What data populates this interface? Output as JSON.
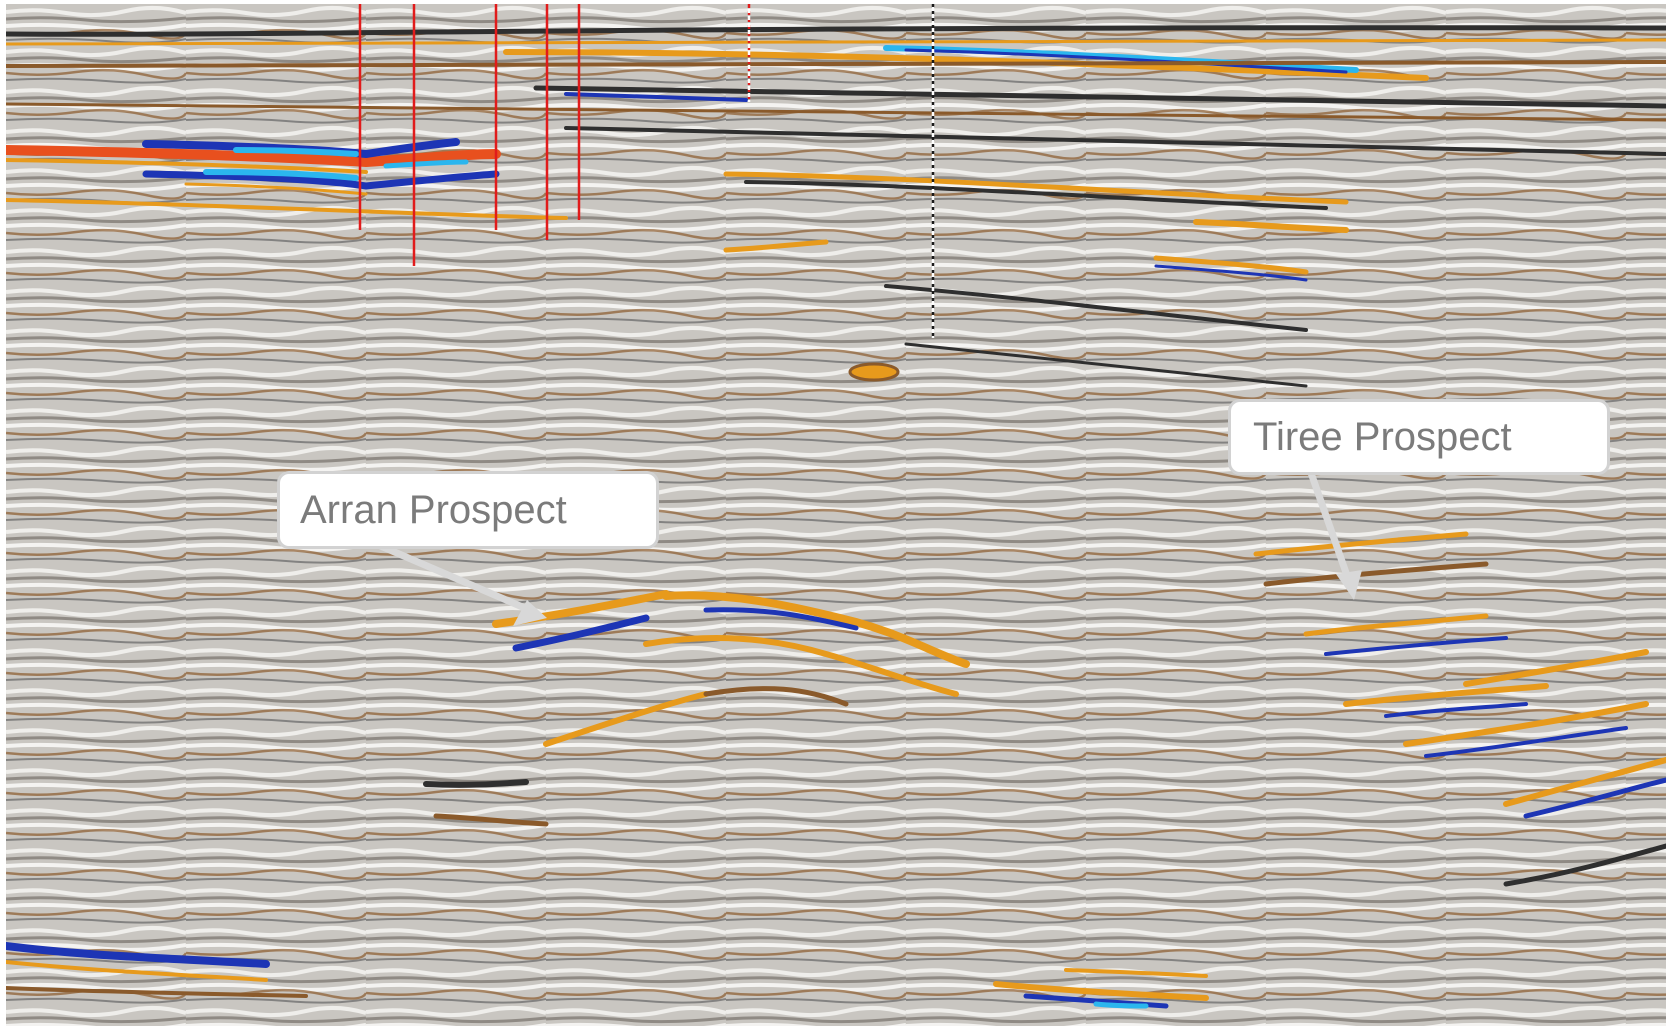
{
  "annotations": {
    "arran": {
      "label": "Arran Prospect"
    },
    "tiree": {
      "label": "Tiree Prospect"
    }
  },
  "colors": {
    "background_grey": "#c9c6c1",
    "trough_dark": "#2f2f2f",
    "peak_brown": "#8a5a2b",
    "peak_orange": "#e79a1c",
    "strong_red": "#e8501e",
    "strong_blue": "#1d35b5",
    "cyan": "#2bb6ee",
    "well_red": "#e11b1b",
    "arrow_grey": "#d8d8d8",
    "callout_text": "#7b7b7b"
  },
  "icons": {
    "arran_arrow": "arrow-down-right-icon",
    "tiree_arrow": "arrow-down-icon"
  }
}
